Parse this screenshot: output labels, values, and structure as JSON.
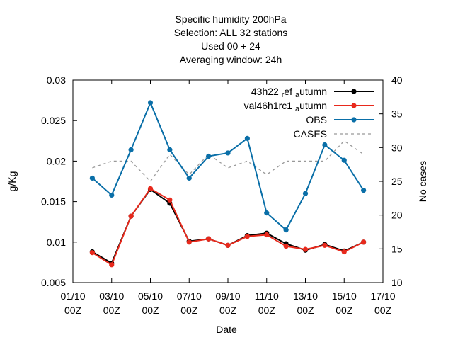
{
  "chart_data": {
    "type": "line",
    "title_lines": [
      "Specific humidity 200hPa",
      "Selection: ALL     32 stations",
      "Used  00  + 24",
      "Averaging window: 24h"
    ],
    "xlabel": "Date",
    "ylabel": "g/Kg",
    "y2label": "No cases",
    "x_ticks": [
      {
        "line1": "01/10",
        "line2": "00Z",
        "day": 1
      },
      {
        "line1": "03/10",
        "line2": "00Z",
        "day": 3
      },
      {
        "line1": "05/10",
        "line2": "00Z",
        "day": 5
      },
      {
        "line1": "07/10",
        "line2": "00Z",
        "day": 7
      },
      {
        "line1": "09/10",
        "line2": "00Z",
        "day": 9
      },
      {
        "line1": "11/10",
        "line2": "00Z",
        "day": 11
      },
      {
        "line1": "13/10",
        "line2": "00Z",
        "day": 13
      },
      {
        "line1": "15/10",
        "line2": "00Z",
        "day": 15
      },
      {
        "line1": "17/10",
        "line2": "00Z",
        "day": 17
      }
    ],
    "xlim": [
      1,
      17
    ],
    "ylim": [
      0.005,
      0.03
    ],
    "y_ticks": [
      "0.005",
      "0.01",
      "0.015",
      "0.02",
      "0.025",
      "0.03"
    ],
    "y2lim": [
      10,
      40
    ],
    "y2_ticks": [
      "10",
      "15",
      "20",
      "25",
      "30",
      "35",
      "40"
    ],
    "x": [
      2,
      3,
      4,
      5,
      6,
      7,
      8,
      9,
      10,
      11,
      12,
      13,
      14,
      15,
      16
    ],
    "series": [
      {
        "name": "43h22 ref autumn",
        "legend_main": "43h22 ",
        "legend_sub": "r",
        "legend_rest": "ef ",
        "legend_sub2": "a",
        "legend_tail": "utumn",
        "color": "#000000",
        "axis": "y",
        "values": [
          0.0088,
          0.0074,
          0.0132,
          0.0165,
          0.0148,
          0.0101,
          0.0104,
          0.0096,
          0.0108,
          0.0111,
          0.0098,
          0.009,
          0.0097,
          0.0089,
          0.01
        ]
      },
      {
        "name": "val46h1rc1 autumn",
        "legend_main": "val46h1rc1 ",
        "legend_sub": "a",
        "legend_tail": "utumn",
        "color": "#e8291c",
        "axis": "y",
        "values": [
          0.0087,
          0.0072,
          0.0132,
          0.0166,
          0.0152,
          0.01,
          0.0104,
          0.0096,
          0.0107,
          0.0109,
          0.0095,
          0.0091,
          0.0096,
          0.0088,
          0.01
        ]
      },
      {
        "name": "OBS",
        "color": "#0a6fa8",
        "axis": "y",
        "values": [
          0.0179,
          0.0158,
          0.0214,
          0.0272,
          0.0214,
          0.0179,
          0.0206,
          0.021,
          0.0228,
          0.0136,
          0.0115,
          0.016,
          0.022,
          0.0201,
          0.0164
        ]
      },
      {
        "name": "CASES",
        "color": "#999999",
        "axis": "y2",
        "dashed": true,
        "values": [
          27,
          28,
          28,
          25,
          29,
          26,
          29,
          27,
          28,
          26,
          28,
          28,
          28,
          31,
          29
        ]
      }
    ],
    "grid": false,
    "legend_position": "top-right"
  }
}
